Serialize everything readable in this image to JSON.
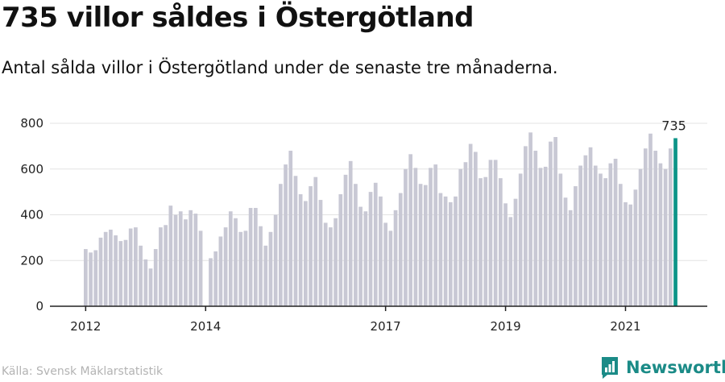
{
  "title": "735 villor såldes i Östergötland",
  "subtitle": "Antal sålda villor i Östergötland under de senaste tre månaderna.",
  "source": "Källa: Svensk Mäklarstatistik",
  "brand": {
    "name": "Newsworthy",
    "icon": "newsworthy-logo-icon",
    "color": "#1b8b87"
  },
  "colors": {
    "bar": "#c8c8d4",
    "highlight": "#0d9488",
    "grid": "#e3e3e3",
    "axis": "#222222"
  },
  "chart_data": {
    "type": "bar",
    "x_start": "2012-01",
    "x_interval": "month",
    "y_ticks": [
      0,
      200,
      400,
      600,
      800
    ],
    "ylim": [
      0,
      820
    ],
    "x_tick_labels": [
      {
        "label": "2012",
        "index": 0
      },
      {
        "label": "2014",
        "index": 24
      },
      {
        "label": "2017",
        "index": 60
      },
      {
        "label": "2019",
        "index": 84
      },
      {
        "label": "2021",
        "index": 108
      }
    ],
    "highlight_label": "735",
    "values": [
      250,
      235,
      245,
      300,
      325,
      335,
      310,
      285,
      290,
      340,
      345,
      265,
      205,
      165,
      250,
      345,
      355,
      440,
      400,
      415,
      380,
      420,
      405,
      330,
      null,
      210,
      240,
      305,
      345,
      415,
      385,
      325,
      330,
      430,
      430,
      350,
      265,
      325,
      400,
      535,
      620,
      680,
      570,
      490,
      460,
      525,
      565,
      465,
      365,
      345,
      385,
      490,
      575,
      635,
      535,
      435,
      415,
      500,
      540,
      480,
      365,
      330,
      420,
      495,
      600,
      665,
      605,
      535,
      530,
      605,
      620,
      495,
      480,
      455,
      480,
      600,
      630,
      710,
      675,
      560,
      565,
      640,
      640,
      560,
      450,
      390,
      470,
      580,
      700,
      760,
      680,
      605,
      610,
      720,
      740,
      580,
      475,
      420,
      525,
      615,
      660,
      695,
      615,
      580,
      560,
      625,
      645,
      535,
      455,
      445,
      510,
      600,
      690,
      755,
      680,
      625,
      600,
      690,
      735
    ]
  }
}
